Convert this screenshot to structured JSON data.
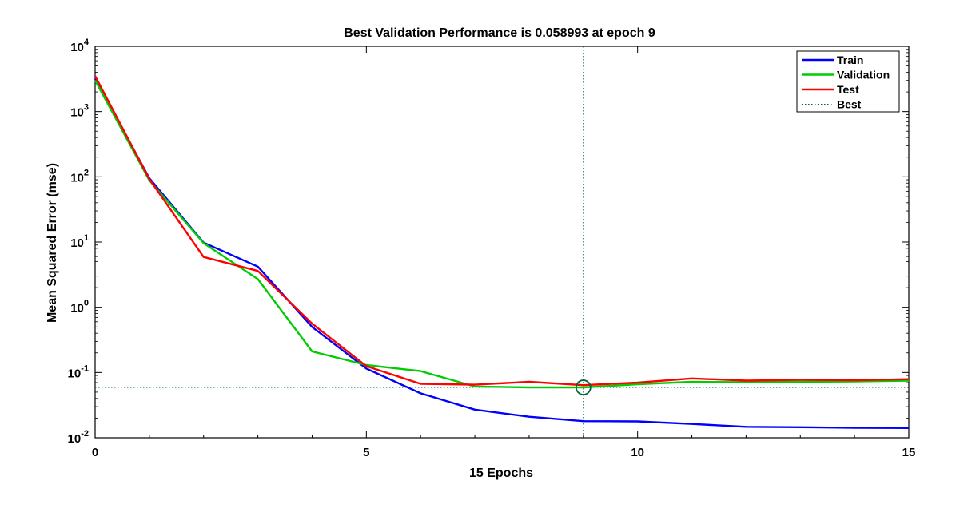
{
  "chart_data": {
    "type": "line",
    "title": "Best Validation Performance is 0.058993 at epoch 9",
    "xlabel": "15 Epochs",
    "ylabel": "Mean Squared Error  (mse)",
    "xlim": [
      0,
      15
    ],
    "ylim": [
      0.01,
      10000
    ],
    "yscale": "log",
    "x_ticks": [
      0,
      5,
      10,
      15
    ],
    "y_ticks": [
      {
        "value": 0.01,
        "base": "10",
        "exp": "-2"
      },
      {
        "value": 0.1,
        "base": "10",
        "exp": "-1"
      },
      {
        "value": 1,
        "base": "10",
        "exp": "0"
      },
      {
        "value": 10,
        "base": "10",
        "exp": "1"
      },
      {
        "value": 100,
        "base": "10",
        "exp": "2"
      },
      {
        "value": 1000,
        "base": "10",
        "exp": "3"
      },
      {
        "value": 10000,
        "base": "10",
        "exp": "4"
      }
    ],
    "legend_position": "top-right",
    "x": [
      0,
      1,
      2,
      3,
      4,
      5,
      6,
      7,
      8,
      9,
      10,
      11,
      12,
      13,
      14,
      15
    ],
    "series": [
      {
        "name": "Train",
        "color": "#0000ff",
        "values": [
          3200,
          95,
          9.8,
          4.2,
          0.5,
          0.115,
          0.048,
          0.027,
          0.021,
          0.018,
          0.0178,
          0.0163,
          0.0147,
          0.0145,
          0.0142,
          0.0141
        ]
      },
      {
        "name": "Validation",
        "color": "#00cc00",
        "values": [
          3000,
          88,
          9.6,
          2.7,
          0.21,
          0.13,
          0.105,
          0.061,
          0.059,
          0.059,
          0.066,
          0.072,
          0.071,
          0.072,
          0.073,
          0.075
        ]
      },
      {
        "name": "Test",
        "color": "#ff0000",
        "values": [
          3500,
          92,
          5.9,
          3.6,
          0.56,
          0.125,
          0.067,
          0.065,
          0.072,
          0.064,
          0.07,
          0.081,
          0.075,
          0.077,
          0.076,
          0.079
        ]
      }
    ],
    "best": {
      "name": "Best",
      "epoch": 9,
      "value": 0.058993,
      "color": "#006633"
    }
  }
}
